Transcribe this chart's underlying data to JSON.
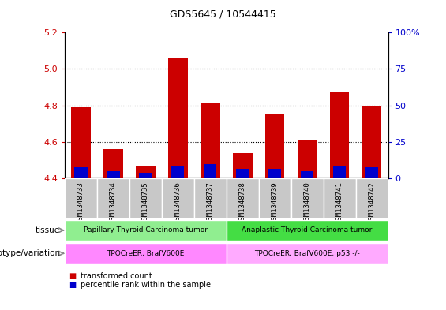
{
  "title": "GDS5645 / 10544415",
  "samples": [
    "GSM1348733",
    "GSM1348734",
    "GSM1348735",
    "GSM1348736",
    "GSM1348737",
    "GSM1348738",
    "GSM1348739",
    "GSM1348740",
    "GSM1348741",
    "GSM1348742"
  ],
  "red_values": [
    4.79,
    4.56,
    4.47,
    5.06,
    4.81,
    4.54,
    4.75,
    4.61,
    4.87,
    4.8
  ],
  "blue_values": [
    4.46,
    4.44,
    4.43,
    4.47,
    4.48,
    4.45,
    4.45,
    4.44,
    4.47,
    4.46
  ],
  "base": 4.4,
  "ylim_left": [
    4.4,
    5.2
  ],
  "ylim_right": [
    0,
    100
  ],
  "yticks_left": [
    4.4,
    4.6,
    4.8,
    5.0,
    5.2
  ],
  "yticks_right": [
    0,
    25,
    50,
    75,
    100
  ],
  "ytick_labels_right": [
    "0",
    "25",
    "50",
    "75",
    "100%"
  ],
  "grid_values": [
    5.0,
    4.8,
    4.6
  ],
  "tissue_labels": [
    "Papillary Thyroid Carcinoma tumor",
    "Anaplastic Thyroid Carcinoma tumor"
  ],
  "tissue_color1": "#90EE90",
  "tissue_color2": "#44DD44",
  "genotype_labels": [
    "TPOCreER; BrafV600E",
    "TPOCreER; BrafV600E; p53 -/-"
  ],
  "genotype_color1": "#FF88FF",
  "genotype_color2": "#FFAAFF",
  "group1_count": 5,
  "group2_count": 5,
  "legend_red": "transformed count",
  "legend_blue": "percentile rank within the sample",
  "bar_color_red": "#CC0000",
  "bar_color_blue": "#0000CC",
  "bar_width": 0.6,
  "blue_bar_width": 0.4,
  "tick_label_color_left": "#CC0000",
  "tick_label_color_right": "#0000CC",
  "sample_box_color": "#C8C8C8",
  "xlabel_tissue": "tissue",
  "xlabel_genotype": "genotype/variation",
  "title_fontsize": 9,
  "axis_fontsize": 8,
  "label_fontsize": 7.5,
  "legend_fontsize": 7
}
